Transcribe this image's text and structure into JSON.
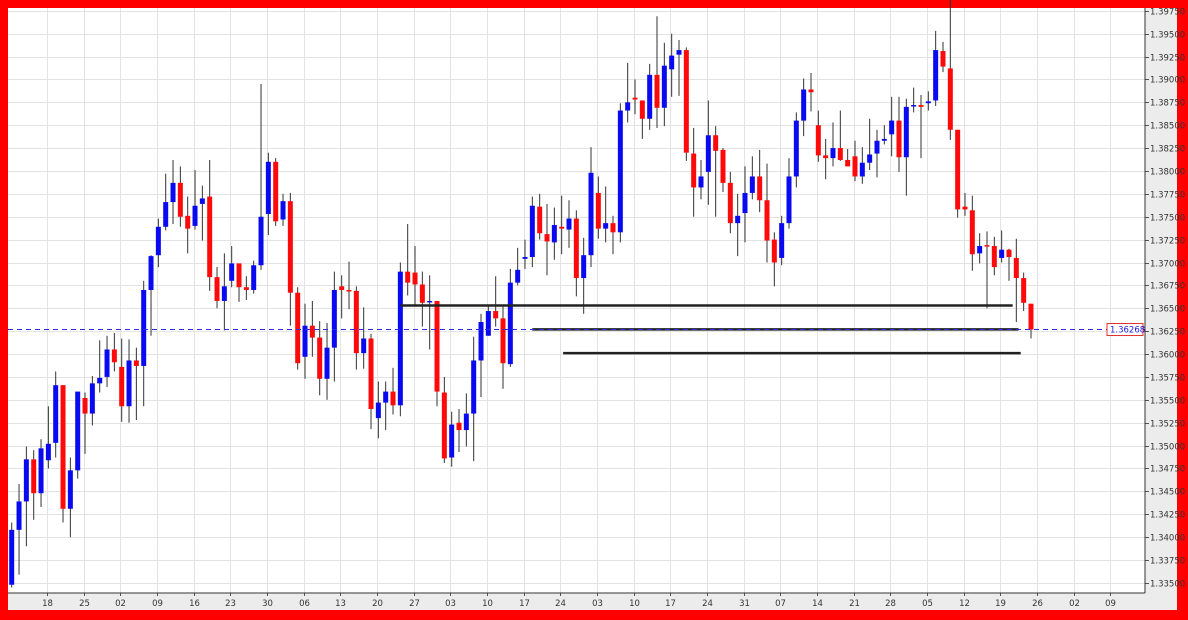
{
  "colors": {
    "frame": "#ff0000",
    "up_candle": "#0a0af0",
    "down_candle": "#ff0a0a",
    "wick": "#333333",
    "grid": "#e3e3e3",
    "axis_panel": "#ececec",
    "current_price_line": "#2a2ae0",
    "support_lines": "#222222"
  },
  "chart_data": {
    "type": "candlestick",
    "title": "",
    "xlabel": "",
    "ylabel": "",
    "grid": true,
    "ylim": [
      1.3339,
      1.3978
    ],
    "y_tick_labels": [
      "1.39750",
      "1.39500",
      "1.39250",
      "1.39000",
      "1.38750",
      "1.38500",
      "1.38250",
      "1.38000",
      "1.37750",
      "1.37500",
      "1.37250",
      "1.37000",
      "1.36750",
      "1.36500",
      "1.36250",
      "1.36000",
      "1.35750",
      "1.35500",
      "1.35250",
      "1.35000",
      "1.34750",
      "1.34500",
      "1.34250",
      "1.34000",
      "1.33750",
      "1.33500"
    ],
    "x_tick_labels": [
      "18",
      "25",
      "02",
      "09",
      "16",
      "23",
      "30",
      "06",
      "13",
      "20",
      "27",
      "03",
      "10",
      "17",
      "24",
      "03",
      "10",
      "17",
      "24",
      "31",
      "07",
      "14",
      "21",
      "28",
      "05",
      "12",
      "19",
      "26",
      "02",
      "09"
    ],
    "current_price": 1.36268,
    "current_price_label": "1.36268",
    "horizontal_lines": [
      {
        "price": 1.3653,
        "from_bar": 53,
        "to_bar": 136.5
      },
      {
        "price": 1.3627,
        "from_bar": 71,
        "to_bar": 137.3
      },
      {
        "price": 1.3601,
        "from_bar": 75.2,
        "to_bar": 137.6
      }
    ],
    "ohlc": [
      [
        1.3348,
        1.3416,
        1.3345,
        1.3408
      ],
      [
        1.3408,
        1.3458,
        1.3359,
        1.3439
      ],
      [
        1.3439,
        1.3499,
        1.339,
        1.3485
      ],
      [
        1.3485,
        1.3495,
        1.3419,
        1.3448
      ],
      [
        1.3448,
        1.3507,
        1.3433,
        1.3497
      ],
      [
        1.3484,
        1.3543,
        1.3475,
        1.3502
      ],
      [
        1.3503,
        1.3581,
        1.3487,
        1.3566
      ],
      [
        1.3566,
        1.3566,
        1.3416,
        1.3431
      ],
      [
        1.3431,
        1.3487,
        1.34,
        1.3473
      ],
      [
        1.3473,
        1.3559,
        1.3464,
        1.3559
      ],
      [
        1.3552,
        1.3558,
        1.3491,
        1.3535
      ],
      [
        1.3535,
        1.3576,
        1.3522,
        1.3568
      ],
      [
        1.3568,
        1.3615,
        1.3558,
        1.3574
      ],
      [
        1.3575,
        1.362,
        1.3564,
        1.3605
      ],
      [
        1.3605,
        1.3623,
        1.3581,
        1.3591
      ],
      [
        1.3586,
        1.3617,
        1.3526,
        1.3543
      ],
      [
        1.3543,
        1.3616,
        1.3525,
        1.3593
      ],
      [
        1.3593,
        1.3607,
        1.3528,
        1.3587
      ],
      [
        1.3587,
        1.368,
        1.3543,
        1.367
      ],
      [
        1.367,
        1.3708,
        1.362,
        1.3707
      ],
      [
        1.3708,
        1.3748,
        1.3695,
        1.3739
      ],
      [
        1.3739,
        1.3797,
        1.3735,
        1.3766
      ],
      [
        1.3766,
        1.3812,
        1.3742,
        1.3787
      ],
      [
        1.3787,
        1.3805,
        1.3739,
        1.375
      ],
      [
        1.3751,
        1.3772,
        1.371,
        1.3737
      ],
      [
        1.374,
        1.3801,
        1.3736,
        1.3762
      ],
      [
        1.3764,
        1.3784,
        1.3724,
        1.377
      ],
      [
        1.3772,
        1.3812,
        1.3669,
        1.3684
      ],
      [
        1.3684,
        1.3695,
        1.365,
        1.3658
      ],
      [
        1.3658,
        1.371,
        1.3626,
        1.3674
      ],
      [
        1.368,
        1.3718,
        1.3673,
        1.3699
      ],
      [
        1.3699,
        1.3699,
        1.3657,
        1.3673
      ],
      [
        1.3673,
        1.3685,
        1.3659,
        1.367
      ],
      [
        1.367,
        1.3702,
        1.3666,
        1.3697
      ],
      [
        1.3697,
        1.3895,
        1.3692,
        1.375
      ],
      [
        1.3753,
        1.382,
        1.373,
        1.381
      ],
      [
        1.381,
        1.3814,
        1.374,
        1.3745
      ],
      [
        1.3747,
        1.3775,
        1.374,
        1.3767
      ],
      [
        1.3767,
        1.3776,
        1.3631,
        1.3667
      ],
      [
        1.3667,
        1.3673,
        1.3583,
        1.359
      ],
      [
        1.3597,
        1.3655,
        1.3573,
        1.3631
      ],
      [
        1.3631,
        1.3658,
        1.3597,
        1.3618
      ],
      [
        1.3618,
        1.3636,
        1.3555,
        1.3573
      ],
      [
        1.3573,
        1.3634,
        1.355,
        1.3607
      ],
      [
        1.3607,
        1.369,
        1.357,
        1.367
      ],
      [
        1.3674,
        1.3686,
        1.3639,
        1.367
      ],
      [
        1.367,
        1.3701,
        1.3649,
        1.3669
      ],
      [
        1.3669,
        1.3674,
        1.3583,
        1.3601
      ],
      [
        1.3601,
        1.3651,
        1.3584,
        1.3617
      ],
      [
        1.3617,
        1.3622,
        1.3518,
        1.354
      ],
      [
        1.353,
        1.357,
        1.3508,
        1.3547
      ],
      [
        1.3547,
        1.357,
        1.3517,
        1.3559
      ],
      [
        1.3559,
        1.3585,
        1.3534,
        1.3544
      ],
      [
        1.3544,
        1.37,
        1.3532,
        1.369
      ],
      [
        1.369,
        1.3742,
        1.3664,
        1.3678
      ],
      [
        1.3689,
        1.3718,
        1.3653,
        1.3676
      ],
      [
        1.3676,
        1.369,
        1.363,
        1.3656
      ],
      [
        1.3657,
        1.3686,
        1.3605,
        1.3658
      ],
      [
        1.3658,
        1.3658,
        1.3543,
        1.3559
      ],
      [
        1.3558,
        1.3575,
        1.3481,
        1.3486
      ],
      [
        1.3487,
        1.3537,
        1.3477,
        1.3523
      ],
      [
        1.3525,
        1.354,
        1.3493,
        1.3517
      ],
      [
        1.3517,
        1.3557,
        1.3499,
        1.3535
      ],
      [
        1.3535,
        1.3619,
        1.3483,
        1.3593
      ],
      [
        1.3593,
        1.3644,
        1.3553,
        1.3635
      ],
      [
        1.362,
        1.3652,
        1.362,
        1.3647
      ],
      [
        1.3647,
        1.3685,
        1.363,
        1.3639
      ],
      [
        1.3639,
        1.3652,
        1.3562,
        1.359
      ],
      [
        1.3589,
        1.3693,
        1.3586,
        1.3678
      ],
      [
        1.3678,
        1.3716,
        1.3675,
        1.3692
      ],
      [
        1.3704,
        1.3725,
        1.3693,
        1.3706
      ],
      [
        1.3706,
        1.3772,
        1.3695,
        1.3762
      ],
      [
        1.3761,
        1.3775,
        1.3725,
        1.3732
      ],
      [
        1.3731,
        1.3764,
        1.3686,
        1.3723
      ],
      [
        1.3722,
        1.376,
        1.3703,
        1.3741
      ],
      [
        1.3739,
        1.3773,
        1.3709,
        1.3737
      ],
      [
        1.3736,
        1.3768,
        1.3716,
        1.3748
      ],
      [
        1.3748,
        1.3757,
        1.3663,
        1.3683
      ],
      [
        1.3683,
        1.3727,
        1.3644,
        1.3708
      ],
      [
        1.3708,
        1.3826,
        1.3695,
        1.3798
      ],
      [
        1.3776,
        1.3794,
        1.3726,
        1.3737
      ],
      [
        1.3737,
        1.3783,
        1.3722,
        1.3743
      ],
      [
        1.3743,
        1.3751,
        1.3709,
        1.3733
      ],
      [
        1.3733,
        1.3874,
        1.3722,
        1.3866
      ],
      [
        1.3866,
        1.3918,
        1.3853,
        1.3875
      ],
      [
        1.388,
        1.39,
        1.3862,
        1.3878
      ],
      [
        1.3877,
        1.3877,
        1.3835,
        1.3857
      ],
      [
        1.3857,
        1.3917,
        1.3845,
        1.3905
      ],
      [
        1.3905,
        1.3969,
        1.3847,
        1.3869
      ],
      [
        1.3869,
        1.394,
        1.3849,
        1.3915
      ],
      [
        1.3911,
        1.395,
        1.3881,
        1.3926
      ],
      [
        1.3927,
        1.3943,
        1.3882,
        1.3932
      ],
      [
        1.3932,
        1.3935,
        1.3811,
        1.382
      ],
      [
        1.3819,
        1.3847,
        1.375,
        1.3782
      ],
      [
        1.3782,
        1.3812,
        1.3769,
        1.3794
      ],
      [
        1.3799,
        1.3877,
        1.3763,
        1.3839
      ],
      [
        1.3839,
        1.3849,
        1.375,
        1.3822
      ],
      [
        1.3823,
        1.3825,
        1.3777,
        1.3787
      ],
      [
        1.3787,
        1.3799,
        1.3732,
        1.3743
      ],
      [
        1.3743,
        1.3775,
        1.3707,
        1.3751
      ],
      [
        1.3754,
        1.3805,
        1.3722,
        1.3776
      ],
      [
        1.3776,
        1.3816,
        1.3769,
        1.3794
      ],
      [
        1.3794,
        1.3823,
        1.3755,
        1.3768
      ],
      [
        1.3768,
        1.3808,
        1.37,
        1.3724
      ],
      [
        1.3725,
        1.3733,
        1.3674,
        1.37
      ],
      [
        1.3705,
        1.3751,
        1.3697,
        1.3743
      ],
      [
        1.3743,
        1.3814,
        1.3737,
        1.3794
      ],
      [
        1.3794,
        1.3864,
        1.3782,
        1.3855
      ],
      [
        1.3855,
        1.3901,
        1.3838,
        1.3889
      ],
      [
        1.3889,
        1.3907,
        1.3865,
        1.3886
      ],
      [
        1.385,
        1.3866,
        1.381,
        1.3817
      ],
      [
        1.3817,
        1.3835,
        1.3791,
        1.3814
      ],
      [
        1.3814,
        1.3853,
        1.3805,
        1.3825
      ],
      [
        1.3825,
        1.3866,
        1.3811,
        1.3812
      ],
      [
        1.3812,
        1.3824,
        1.3805,
        1.3805
      ],
      [
        1.3816,
        1.3833,
        1.3789,
        1.3794
      ],
      [
        1.3794,
        1.3826,
        1.3786,
        1.3809
      ],
      [
        1.3809,
        1.3857,
        1.3801,
        1.3818
      ],
      [
        1.3819,
        1.3845,
        1.3793,
        1.3833
      ],
      [
        1.3833,
        1.385,
        1.3829,
        1.3835
      ],
      [
        1.384,
        1.3881,
        1.3816,
        1.3855
      ],
      [
        1.3855,
        1.3881,
        1.3799,
        1.3815
      ],
      [
        1.3815,
        1.3879,
        1.3773,
        1.387
      ],
      [
        1.3871,
        1.3891,
        1.3864,
        1.3872
      ],
      [
        1.3872,
        1.3883,
        1.3814,
        1.387
      ],
      [
        1.3874,
        1.3887,
        1.3866,
        1.3876
      ],
      [
        1.3877,
        1.3953,
        1.3871,
        1.3932
      ],
      [
        1.3931,
        1.3941,
        1.3908,
        1.3914
      ],
      [
        1.3912,
        1.3995,
        1.3834,
        1.3845
      ],
      [
        1.3845,
        1.3845,
        1.3749,
        1.3758
      ],
      [
        1.3761,
        1.3776,
        1.3751,
        1.3758
      ],
      [
        1.3757,
        1.3773,
        1.3691,
        1.3709
      ],
      [
        1.371,
        1.3732,
        1.3699,
        1.3718
      ],
      [
        1.3719,
        1.3734,
        1.365,
        1.3718
      ],
      [
        1.3718,
        1.3728,
        1.3686,
        1.3695
      ],
      [
        1.3705,
        1.3735,
        1.37,
        1.3714
      ],
      [
        1.3714,
        1.3715,
        1.368,
        1.3706
      ],
      [
        1.3705,
        1.3726,
        1.3635,
        1.3683
      ],
      [
        1.3683,
        1.3689,
        1.3647,
        1.3656
      ],
      [
        1.3655,
        1.3655,
        1.3617,
        1.36268
      ]
    ]
  }
}
